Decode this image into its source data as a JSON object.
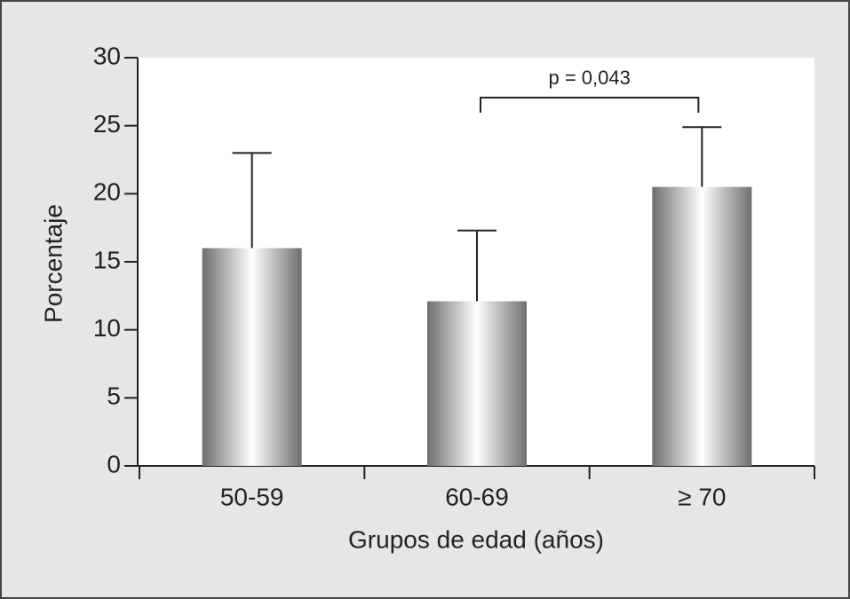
{
  "chart_data": {
    "type": "bar",
    "x_label": "Grupos de edad (años)",
    "y_label": "Porcentaje",
    "categories": [
      "50-59",
      "60-69",
      "≥ 70"
    ],
    "values": [
      16,
      12.1,
      20.5
    ],
    "errors": [
      7,
      5.2,
      4.4
    ],
    "color": "#6e6e6e",
    "ylim": [
      0,
      30
    ],
    "yticks": [
      0,
      5,
      10,
      15,
      20,
      25,
      30
    ],
    "annotation": "p = 0,043"
  }
}
